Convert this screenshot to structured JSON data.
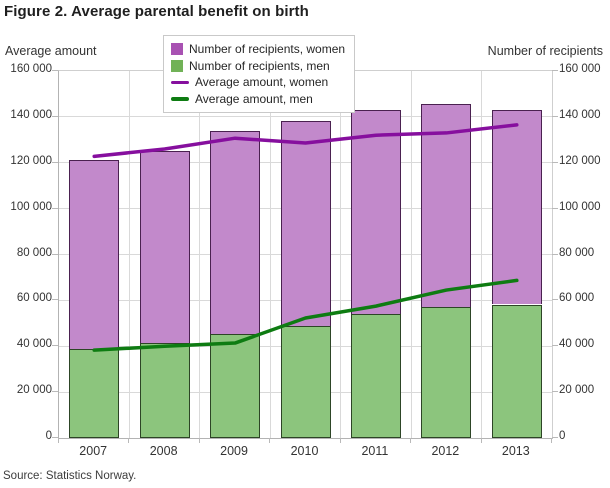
{
  "title": "Figure 2. Average parental benefit on birth",
  "source": "Source: Statistics Norway.",
  "axes": {
    "left_title": "Average amount",
    "right_title": "Number of recipients",
    "tick_labels": [
      "0",
      "20 000",
      "40 000",
      "60 000",
      "80 000",
      "100 000",
      "120 000",
      "140 000",
      "160 000"
    ],
    "tick_values": [
      0,
      20000,
      40000,
      60000,
      80000,
      100000,
      120000,
      140000,
      160000
    ],
    "y_max": 160000
  },
  "legend": {
    "items": [
      {
        "label": "Number of recipients, women",
        "marker": "square",
        "color": "#a851b2"
      },
      {
        "label": "Number of recipients, men",
        "marker": "square",
        "color": "#71b257"
      },
      {
        "label": "Average amount, women",
        "marker": "line",
        "color": "#860f9e"
      },
      {
        "label": "Average amount, men",
        "marker": "line",
        "color": "#0e7c12"
      }
    ]
  },
  "chart_data": {
    "type": "combo_stacked_bar_line",
    "title": "Figure 2. Average parental benefit on birth",
    "categories": [
      "2007",
      "2008",
      "2009",
      "2010",
      "2011",
      "2012",
      "2013"
    ],
    "ylabel_left": "Average amount",
    "ylabel_right": "Number of recipients",
    "ylim": [
      0,
      160000
    ],
    "grid": true,
    "legend_position": "top",
    "series": [
      {
        "name": "Number of recipients, men",
        "type": "bar",
        "stack": "recipients",
        "axis": "right",
        "color": "#8cc57d",
        "border_color": "#2d4526",
        "values": [
          39000,
          41300,
          45400,
          49000,
          54000,
          57300,
          58200
        ]
      },
      {
        "name": "Number of recipients, women",
        "type": "bar",
        "stack": "recipients",
        "axis": "right",
        "color": "#c289cb",
        "border_color": "#4a2150",
        "values": [
          82300,
          83800,
          88300,
          89100,
          89200,
          88400,
          84700
        ]
      },
      {
        "name": "Average amount, women",
        "type": "line",
        "axis": "left",
        "color": "#860f9e",
        "values": [
          122800,
          126000,
          130700,
          128600,
          132000,
          133000,
          136500
        ]
      },
      {
        "name": "Average amount, men",
        "type": "line",
        "axis": "left",
        "color": "#0e7c12",
        "values": [
          38300,
          40000,
          41400,
          52300,
          57500,
          64500,
          68700
        ]
      }
    ]
  },
  "style": {
    "gridline_color": "#d9d9d9",
    "axis_line_color": "#b3b3b3",
    "tick_text_color": "#333333"
  }
}
